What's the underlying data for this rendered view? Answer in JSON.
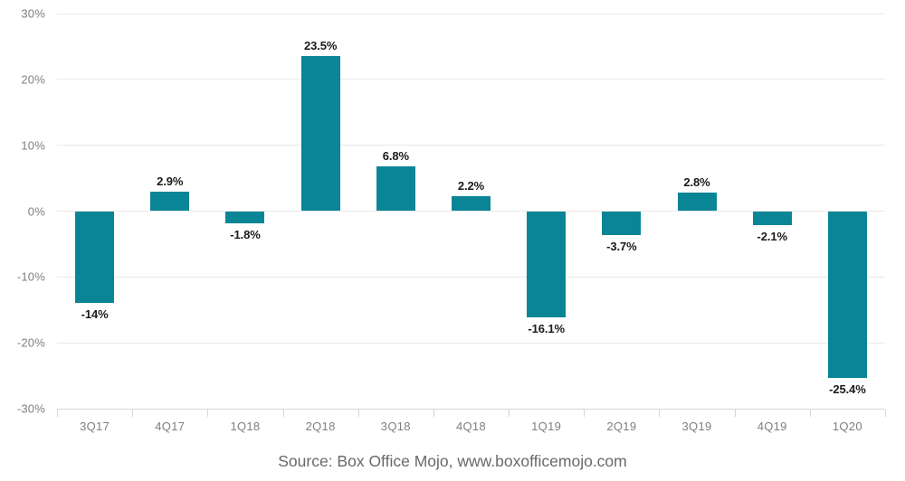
{
  "figure": {
    "source_caption": "Source: Box Office Mojo, www.boxofficemojo.com"
  },
  "chart_data": {
    "type": "bar",
    "title": "",
    "xlabel": "",
    "ylabel": "",
    "categories": [
      "3Q17",
      "4Q17",
      "1Q18",
      "2Q18",
      "3Q18",
      "4Q18",
      "1Q19",
      "2Q19",
      "3Q19",
      "4Q19",
      "1Q20"
    ],
    "values": [
      -14,
      2.9,
      -1.8,
      23.5,
      6.8,
      2.2,
      -16.1,
      -3.7,
      2.8,
      -2.1,
      -25.4
    ],
    "value_labels": [
      "-14%",
      "2.9%",
      "-1.8%",
      "23.5%",
      "6.8%",
      "2.2%",
      "-16.1%",
      "-3.7%",
      "2.8%",
      "-2.1%",
      "-25.4%"
    ],
    "ylim": [
      -30,
      30
    ],
    "ytick_step": 10,
    "ytick_labels": [
      "30%",
      "20%",
      "10%",
      "0%",
      "-10%",
      "-20%",
      "-30%"
    ],
    "grid": true,
    "legend": "none",
    "source": "Source: Box Office Mojo, www.boxofficemojo.com",
    "colors": {
      "bar": "#0a8596",
      "gridline": "#e9e9e9",
      "axis": "#d5d5da",
      "tick_label": "#7f7f7f",
      "value_label": "#1a1a1a",
      "source_text": "#696969"
    }
  }
}
